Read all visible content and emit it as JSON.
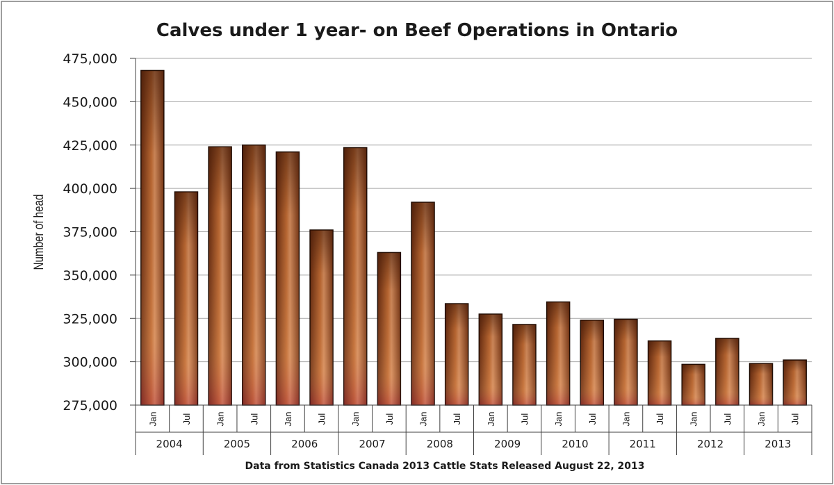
{
  "chart_data": {
    "type": "bar",
    "title": "Calves under 1 year- on Beef Operations in Ontario",
    "ylabel": "Number of head",
    "source_note": "Data from Statistics Canada 2013 Cattle Stats Released August 22, 2013",
    "ylim": [
      275000,
      475000
    ],
    "yticks": [
      275000,
      300000,
      325000,
      350000,
      375000,
      400000,
      425000,
      450000,
      475000
    ],
    "ytick_labels": [
      "275,000",
      "300,000",
      "325,000",
      "350,000",
      "375,000",
      "400,000",
      "425,000",
      "450,000",
      "475,000"
    ],
    "years": [
      "2004",
      "2005",
      "2006",
      "2007",
      "2008",
      "2009",
      "2010",
      "2011",
      "2012",
      "2013"
    ],
    "months": [
      "Jan",
      "Jul"
    ],
    "categories": [
      "Jan 2004",
      "Jul 2004",
      "Jan 2005",
      "Jul 2005",
      "Jan 2006",
      "Jul 2006",
      "Jan 2007",
      "Jul 2007",
      "Jan 2008",
      "Jul 2008",
      "Jan 2009",
      "Jul 2009",
      "Jan 2010",
      "Jul 2010",
      "Jan 2011",
      "Jul 2011",
      "Jan 2012",
      "Jul 2012",
      "Jan 2013",
      "Jul 2013"
    ],
    "values": [
      468000,
      398000,
      424000,
      425000,
      421000,
      376000,
      423500,
      363000,
      392000,
      333500,
      327500,
      321500,
      334500,
      324000,
      324500,
      312000,
      298500,
      313500,
      299000,
      301000
    ],
    "grid": true,
    "legend": "none"
  },
  "colors": {
    "bar_dark": "#5e2a10",
    "bar_mid": "#b8632e",
    "bar_light": "#e0a070",
    "bar_base": "#b0284a",
    "grid": "#a6a6a6",
    "frame": "#7f7f7f"
  }
}
